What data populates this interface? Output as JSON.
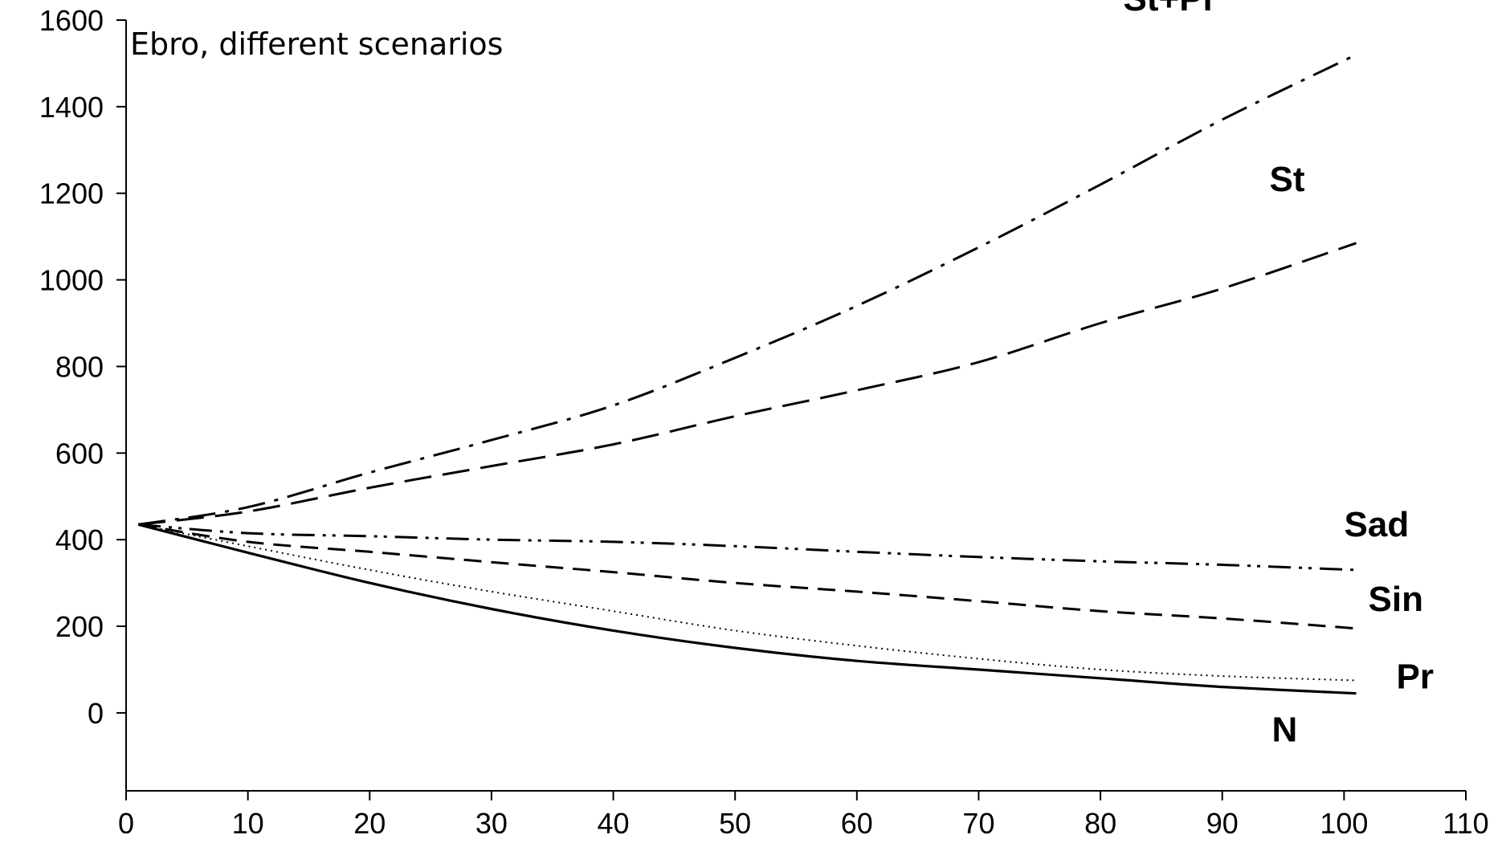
{
  "chart_data": {
    "type": "line",
    "title": "Ebro, different scenarios",
    "xlabel": "",
    "ylabel": "",
    "xlim": [
      0,
      110
    ],
    "ylim": [
      -180,
      1600
    ],
    "x_ticks": [
      0,
      10,
      20,
      30,
      40,
      50,
      60,
      70,
      80,
      90,
      100,
      110
    ],
    "y_ticks": [
      0,
      200,
      400,
      600,
      800,
      1000,
      1200,
      1400,
      1600
    ],
    "grid": false,
    "legend": "none",
    "x": [
      1,
      10,
      20,
      30,
      40,
      50,
      60,
      70,
      80,
      90,
      101
    ],
    "series": [
      {
        "name": "St+Pr",
        "line_style": "dash-dot",
        "values": [
          435,
          475,
          555,
          630,
          710,
          820,
          940,
          1075,
          1220,
          1370,
          1520
        ]
      },
      {
        "name": "St",
        "line_style": "long-dash",
        "values": [
          435,
          465,
          520,
          570,
          620,
          685,
          745,
          810,
          900,
          980,
          1085
        ]
      },
      {
        "name": "Sad",
        "line_style": "dash-dot-dot",
        "values": [
          435,
          415,
          408,
          400,
          395,
          385,
          372,
          360,
          350,
          342,
          330
        ]
      },
      {
        "name": "Sin",
        "line_style": "short-dash",
        "values": [
          435,
          395,
          372,
          348,
          325,
          300,
          280,
          258,
          235,
          218,
          195
        ]
      },
      {
        "name": "Pr",
        "line_style": "dotted",
        "values": [
          435,
          385,
          330,
          280,
          235,
          190,
          155,
          125,
          100,
          85,
          75
        ]
      },
      {
        "name": "N",
        "line_style": "solid",
        "values": [
          435,
          370,
          300,
          240,
          190,
          150,
          120,
          100,
          80,
          60,
          45
        ]
      }
    ],
    "colors": {
      "lines": "#000000",
      "axis": "#000000",
      "background": "#ffffff"
    }
  }
}
